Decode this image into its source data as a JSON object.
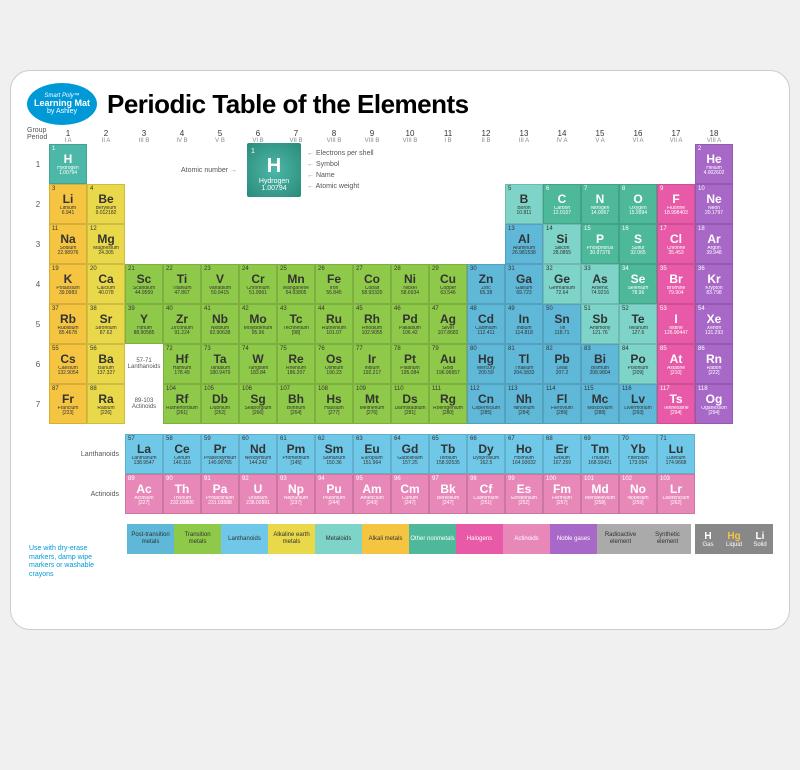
{
  "title": "Periodic Table of the Elements",
  "logo": {
    "top": "Smart Poly™",
    "mid": "Learning Mat",
    "bot": "by Ashley"
  },
  "axis": {
    "group": "Group",
    "period": "Period"
  },
  "groups": [
    {
      "n": "1",
      "s": "I A"
    },
    {
      "n": "2",
      "s": "II A"
    },
    {
      "n": "3",
      "s": "III B"
    },
    {
      "n": "4",
      "s": "IV B"
    },
    {
      "n": "5",
      "s": "V B"
    },
    {
      "n": "6",
      "s": "VI B"
    },
    {
      "n": "7",
      "s": "VII B"
    },
    {
      "n": "8",
      "s": "VIII B"
    },
    {
      "n": "9",
      "s": "VIII B"
    },
    {
      "n": "10",
      "s": "VIII B"
    },
    {
      "n": "11",
      "s": "I B"
    },
    {
      "n": "12",
      "s": "II B"
    },
    {
      "n": "13",
      "s": "III A"
    },
    {
      "n": "14",
      "s": "IV A"
    },
    {
      "n": "15",
      "s": "V A"
    },
    {
      "n": "16",
      "s": "VI A"
    },
    {
      "n": "17",
      "s": "VII A"
    },
    {
      "n": "18",
      "s": "VIII A"
    }
  ],
  "key": {
    "num": "1",
    "sym": "H",
    "name": "Hydrogen",
    "wt": "1.00794",
    "labels": {
      "an": "Atomic number",
      "eps": "Electrons per shell",
      "sym": "Symbol",
      "name": "Name",
      "aw": "Atomic weight"
    }
  },
  "colors": {
    "alkali": "#f5c542",
    "alkaline": "#e8d84a",
    "transition": "#8fc94a",
    "post": "#5fb8d8",
    "metalloid": "#7ed4c8",
    "othernon": "#4db89a",
    "halogen": "#e85aa8",
    "noble": "#a868c8",
    "lanth": "#6fc8e8",
    "actin": "#e888b8",
    "hydrogen": "#4db8a8",
    "unknown": "#aaaaaa"
  },
  "elements": [
    [
      {
        "n": 1,
        "s": "H",
        "nm": "Hydrogen",
        "w": "1.00794",
        "c": "hydrogen"
      },
      null,
      null,
      null,
      null,
      null,
      null,
      null,
      null,
      null,
      null,
      null,
      null,
      null,
      null,
      null,
      null,
      {
        "n": 2,
        "s": "He",
        "nm": "Helium",
        "w": "4.002602",
        "c": "noble"
      }
    ],
    [
      {
        "n": 3,
        "s": "Li",
        "nm": "Lithium",
        "w": "6.941",
        "c": "alkali"
      },
      {
        "n": 4,
        "s": "Be",
        "nm": "Beryllium",
        "w": "9.012182",
        "c": "alkaline"
      },
      null,
      null,
      null,
      null,
      null,
      null,
      null,
      null,
      null,
      null,
      {
        "n": 5,
        "s": "B",
        "nm": "Boron",
        "w": "10.811",
        "c": "metalloid"
      },
      {
        "n": 6,
        "s": "C",
        "nm": "Carbon",
        "w": "12.0107",
        "c": "othernon"
      },
      {
        "n": 7,
        "s": "N",
        "nm": "Nitrogen",
        "w": "14.0067",
        "c": "othernon"
      },
      {
        "n": 8,
        "s": "O",
        "nm": "Oxygen",
        "w": "15.9994",
        "c": "othernon"
      },
      {
        "n": 9,
        "s": "F",
        "nm": "Fluorine",
        "w": "18.998403",
        "c": "halogen"
      },
      {
        "n": 10,
        "s": "Ne",
        "nm": "Neon",
        "w": "20.1797",
        "c": "noble"
      }
    ],
    [
      {
        "n": 11,
        "s": "Na",
        "nm": "Sodium",
        "w": "22.98976",
        "c": "alkali"
      },
      {
        "n": 12,
        "s": "Mg",
        "nm": "Magnesium",
        "w": "24.305",
        "c": "alkaline"
      },
      null,
      null,
      null,
      null,
      null,
      null,
      null,
      null,
      null,
      null,
      {
        "n": 13,
        "s": "Al",
        "nm": "Aluminum",
        "w": "26.981538",
        "c": "post"
      },
      {
        "n": 14,
        "s": "Si",
        "nm": "Silicon",
        "w": "28.0855",
        "c": "metalloid"
      },
      {
        "n": 15,
        "s": "P",
        "nm": "Phosphorus",
        "w": "30.97376",
        "c": "othernon"
      },
      {
        "n": 16,
        "s": "S",
        "nm": "Sulfur",
        "w": "32.065",
        "c": "othernon"
      },
      {
        "n": 17,
        "s": "Cl",
        "nm": "Chlorine",
        "w": "35.453",
        "c": "halogen"
      },
      {
        "n": 18,
        "s": "Ar",
        "nm": "Argon",
        "w": "39.948",
        "c": "noble"
      }
    ],
    [
      {
        "n": 19,
        "s": "K",
        "nm": "Potassium",
        "w": "39.0983",
        "c": "alkali"
      },
      {
        "n": 20,
        "s": "Ca",
        "nm": "Calcium",
        "w": "40.078",
        "c": "alkaline"
      },
      {
        "n": 21,
        "s": "Sc",
        "nm": "Scandium",
        "w": "44.9559",
        "c": "transition"
      },
      {
        "n": 22,
        "s": "Ti",
        "nm": "Titanium",
        "w": "47.867",
        "c": "transition"
      },
      {
        "n": 23,
        "s": "V",
        "nm": "Vanadium",
        "w": "50.9415",
        "c": "transition"
      },
      {
        "n": 24,
        "s": "Cr",
        "nm": "Chromium",
        "w": "51.9961",
        "c": "transition"
      },
      {
        "n": 25,
        "s": "Mn",
        "nm": "Manganese",
        "w": "54.93805",
        "c": "transition"
      },
      {
        "n": 26,
        "s": "Fe",
        "nm": "Iron",
        "w": "55.845",
        "c": "transition"
      },
      {
        "n": 27,
        "s": "Co",
        "nm": "Cobalt",
        "w": "58.93320",
        "c": "transition"
      },
      {
        "n": 28,
        "s": "Ni",
        "nm": "Nickel",
        "w": "58.6934",
        "c": "transition"
      },
      {
        "n": 29,
        "s": "Cu",
        "nm": "Copper",
        "w": "63.546",
        "c": "transition"
      },
      {
        "n": 30,
        "s": "Zn",
        "nm": "Zinc",
        "w": "65.38",
        "c": "post"
      },
      {
        "n": 31,
        "s": "Ga",
        "nm": "Gallium",
        "w": "69.723",
        "c": "post"
      },
      {
        "n": 32,
        "s": "Ge",
        "nm": "Germanium",
        "w": "72.64",
        "c": "metalloid"
      },
      {
        "n": 33,
        "s": "As",
        "nm": "Arsenic",
        "w": "74.9216",
        "c": "metalloid"
      },
      {
        "n": 34,
        "s": "Se",
        "nm": "Selenium",
        "w": "78.96",
        "c": "othernon"
      },
      {
        "n": 35,
        "s": "Br",
        "nm": "Bromine",
        "w": "79.904",
        "c": "halogen"
      },
      {
        "n": 36,
        "s": "Kr",
        "nm": "Krypton",
        "w": "83.798",
        "c": "noble"
      }
    ],
    [
      {
        "n": 37,
        "s": "Rb",
        "nm": "Rubidium",
        "w": "85.4678",
        "c": "alkali"
      },
      {
        "n": 38,
        "s": "Sr",
        "nm": "Strontium",
        "w": "87.62",
        "c": "alkaline"
      },
      {
        "n": 39,
        "s": "Y",
        "nm": "Yttrium",
        "w": "88.90585",
        "c": "transition"
      },
      {
        "n": 40,
        "s": "Zr",
        "nm": "Zirconium",
        "w": "91.224",
        "c": "transition"
      },
      {
        "n": 41,
        "s": "Nb",
        "nm": "Niobium",
        "w": "92.90638",
        "c": "transition"
      },
      {
        "n": 42,
        "s": "Mo",
        "nm": "Molybdenum",
        "w": "95.96",
        "c": "transition"
      },
      {
        "n": 43,
        "s": "Tc",
        "nm": "Technetium",
        "w": "[98]",
        "c": "transition"
      },
      {
        "n": 44,
        "s": "Ru",
        "nm": "Ruthenium",
        "w": "101.07",
        "c": "transition"
      },
      {
        "n": 45,
        "s": "Rh",
        "nm": "Rhodium",
        "w": "102.9055",
        "c": "transition"
      },
      {
        "n": 46,
        "s": "Pd",
        "nm": "Palladium",
        "w": "106.42",
        "c": "transition"
      },
      {
        "n": 47,
        "s": "Ag",
        "nm": "Silver",
        "w": "107.8682",
        "c": "transition"
      },
      {
        "n": 48,
        "s": "Cd",
        "nm": "Cadmium",
        "w": "112.411",
        "c": "post"
      },
      {
        "n": 49,
        "s": "In",
        "nm": "Indium",
        "w": "114.818",
        "c": "post"
      },
      {
        "n": 50,
        "s": "Sn",
        "nm": "Tin",
        "w": "118.71",
        "c": "post"
      },
      {
        "n": 51,
        "s": "Sb",
        "nm": "Antimony",
        "w": "121.76",
        "c": "metalloid"
      },
      {
        "n": 52,
        "s": "Te",
        "nm": "Tellurium",
        "w": "127.6",
        "c": "metalloid"
      },
      {
        "n": 53,
        "s": "I",
        "nm": "Iodine",
        "w": "126.90447",
        "c": "halogen"
      },
      {
        "n": 54,
        "s": "Xe",
        "nm": "Xenon",
        "w": "131.293",
        "c": "noble"
      }
    ],
    [
      {
        "n": 55,
        "s": "Cs",
        "nm": "Caesium",
        "w": "132.9054",
        "c": "alkali"
      },
      {
        "n": 56,
        "s": "Ba",
        "nm": "Barium",
        "w": "137.327",
        "c": "alkaline"
      },
      {
        "lbl": "57-71",
        "sub": "Lanthanoids"
      },
      {
        "n": 72,
        "s": "Hf",
        "nm": "Hafnium",
        "w": "178.49",
        "c": "transition"
      },
      {
        "n": 73,
        "s": "Ta",
        "nm": "Tantalum",
        "w": "180.9479",
        "c": "transition"
      },
      {
        "n": 74,
        "s": "W",
        "nm": "Tungsten",
        "w": "183.84",
        "c": "transition"
      },
      {
        "n": 75,
        "s": "Re",
        "nm": "Rhenium",
        "w": "186.207",
        "c": "transition"
      },
      {
        "n": 76,
        "s": "Os",
        "nm": "Osmium",
        "w": "190.23",
        "c": "transition"
      },
      {
        "n": 77,
        "s": "Ir",
        "nm": "Iridium",
        "w": "192.217",
        "c": "transition"
      },
      {
        "n": 78,
        "s": "Pt",
        "nm": "Platinum",
        "w": "195.084",
        "c": "transition"
      },
      {
        "n": 79,
        "s": "Au",
        "nm": "Gold",
        "w": "196.96657",
        "c": "transition"
      },
      {
        "n": 80,
        "s": "Hg",
        "nm": "Mercury",
        "w": "200.59",
        "c": "post"
      },
      {
        "n": 81,
        "s": "Tl",
        "nm": "Thallium",
        "w": "204.3833",
        "c": "post"
      },
      {
        "n": 82,
        "s": "Pb",
        "nm": "Lead",
        "w": "207.2",
        "c": "post"
      },
      {
        "n": 83,
        "s": "Bi",
        "nm": "Bismuth",
        "w": "208.9804",
        "c": "post"
      },
      {
        "n": 84,
        "s": "Po",
        "nm": "Polonium",
        "w": "[209]",
        "c": "metalloid"
      },
      {
        "n": 85,
        "s": "At",
        "nm": "Astatine",
        "w": "[210]",
        "c": "halogen"
      },
      {
        "n": 86,
        "s": "Rn",
        "nm": "Radon",
        "w": "[222]",
        "c": "noble"
      }
    ],
    [
      {
        "n": 87,
        "s": "Fr",
        "nm": "Francium",
        "w": "[223]",
        "c": "alkali"
      },
      {
        "n": 88,
        "s": "Ra",
        "nm": "Radium",
        "w": "[226]",
        "c": "alkaline"
      },
      {
        "lbl": "89-103",
        "sub": "Actinoids"
      },
      {
        "n": 104,
        "s": "Rf",
        "nm": "Rutherfordium",
        "w": "[261]",
        "c": "transition"
      },
      {
        "n": 105,
        "s": "Db",
        "nm": "Dubnium",
        "w": "[262]",
        "c": "transition"
      },
      {
        "n": 106,
        "s": "Sg",
        "nm": "Seaborgium",
        "w": "[266]",
        "c": "transition"
      },
      {
        "n": 107,
        "s": "Bh",
        "nm": "Bohrium",
        "w": "[264]",
        "c": "transition"
      },
      {
        "n": 108,
        "s": "Hs",
        "nm": "Hassium",
        "w": "[277]",
        "c": "transition"
      },
      {
        "n": 109,
        "s": "Mt",
        "nm": "Meitnerium",
        "w": "[276]",
        "c": "transition"
      },
      {
        "n": 110,
        "s": "Ds",
        "nm": "Darmstadtium",
        "w": "[281]",
        "c": "transition"
      },
      {
        "n": 111,
        "s": "Rg",
        "nm": "Roentgenium",
        "w": "[280]",
        "c": "transition"
      },
      {
        "n": 112,
        "s": "Cn",
        "nm": "Copernicium",
        "w": "[285]",
        "c": "post"
      },
      {
        "n": 113,
        "s": "Nh",
        "nm": "Nihonium",
        "w": "[284]",
        "c": "post"
      },
      {
        "n": 114,
        "s": "Fl",
        "nm": "Flerovium",
        "w": "[289]",
        "c": "post"
      },
      {
        "n": 115,
        "s": "Mc",
        "nm": "Moscovium",
        "w": "[288]",
        "c": "post"
      },
      {
        "n": 116,
        "s": "Lv",
        "nm": "Livermorium",
        "w": "[293]",
        "c": "post"
      },
      {
        "n": 117,
        "s": "Ts",
        "nm": "Tennessine",
        "w": "[294]",
        "c": "halogen"
      },
      {
        "n": 118,
        "s": "Og",
        "nm": "Oganesson",
        "w": "[294]",
        "c": "noble"
      }
    ]
  ],
  "lanthanoids_label": "Lanthanoids",
  "actinoids_label": "Actinoids",
  "lanthanoids": [
    {
      "n": 57,
      "s": "La",
      "nm": "Lanthanum",
      "w": "138.9547",
      "c": "lanth"
    },
    {
      "n": 58,
      "s": "Ce",
      "nm": "Cerium",
      "w": "140.116",
      "c": "lanth"
    },
    {
      "n": 59,
      "s": "Pr",
      "nm": "Praseodymium",
      "w": "140.90765",
      "c": "lanth"
    },
    {
      "n": 60,
      "s": "Nd",
      "nm": "Neodymium",
      "w": "144.242",
      "c": "lanth"
    },
    {
      "n": 61,
      "s": "Pm",
      "nm": "Promethium",
      "w": "[145]",
      "c": "lanth"
    },
    {
      "n": 62,
      "s": "Sm",
      "nm": "Samarium",
      "w": "150.36",
      "c": "lanth"
    },
    {
      "n": 63,
      "s": "Eu",
      "nm": "Europium",
      "w": "151.964",
      "c": "lanth"
    },
    {
      "n": 64,
      "s": "Gd",
      "nm": "Gadolinium",
      "w": "157.25",
      "c": "lanth"
    },
    {
      "n": 65,
      "s": "Tb",
      "nm": "Terbium",
      "w": "158.92535",
      "c": "lanth"
    },
    {
      "n": 66,
      "s": "Dy",
      "nm": "Dysprosium",
      "w": "162.5",
      "c": "lanth"
    },
    {
      "n": 67,
      "s": "Ho",
      "nm": "Holmium",
      "w": "164.93032",
      "c": "lanth"
    },
    {
      "n": 68,
      "s": "Er",
      "nm": "Erbium",
      "w": "167.259",
      "c": "lanth"
    },
    {
      "n": 69,
      "s": "Tm",
      "nm": "Thulium",
      "w": "168.93421",
      "c": "lanth"
    },
    {
      "n": 70,
      "s": "Yb",
      "nm": "Ytterbium",
      "w": "173.054",
      "c": "lanth"
    },
    {
      "n": 71,
      "s": "Lu",
      "nm": "Lutetium",
      "w": "174.9668",
      "c": "lanth"
    }
  ],
  "actinoids": [
    {
      "n": 89,
      "s": "Ac",
      "nm": "Actinium",
      "w": "[227]",
      "c": "actin"
    },
    {
      "n": 90,
      "s": "Th",
      "nm": "Thorium",
      "w": "232.03806",
      "c": "actin"
    },
    {
      "n": 91,
      "s": "Pa",
      "nm": "Protactinium",
      "w": "231.03588",
      "c": "actin"
    },
    {
      "n": 92,
      "s": "U",
      "nm": "Uranium",
      "w": "238.02891",
      "c": "actin"
    },
    {
      "n": 93,
      "s": "Np",
      "nm": "Neptunium",
      "w": "[237]",
      "c": "actin"
    },
    {
      "n": 94,
      "s": "Pu",
      "nm": "Plutonium",
      "w": "[244]",
      "c": "actin"
    },
    {
      "n": 95,
      "s": "Am",
      "nm": "Americium",
      "w": "[243]",
      "c": "actin"
    },
    {
      "n": 96,
      "s": "Cm",
      "nm": "Curium",
      "w": "[247]",
      "c": "actin"
    },
    {
      "n": 97,
      "s": "Bk",
      "nm": "Berkelium",
      "w": "[247]",
      "c": "actin"
    },
    {
      "n": 98,
      "s": "Cf",
      "nm": "Californium",
      "w": "[251]",
      "c": "actin"
    },
    {
      "n": 99,
      "s": "Es",
      "nm": "Einsteinium",
      "w": "[252]",
      "c": "actin"
    },
    {
      "n": 100,
      "s": "Fm",
      "nm": "Fermium",
      "w": "[257]",
      "c": "actin"
    },
    {
      "n": 101,
      "s": "Md",
      "nm": "Mendelevium",
      "w": "[258]",
      "c": "actin"
    },
    {
      "n": 102,
      "s": "No",
      "nm": "Nobelium",
      "w": "[259]",
      "c": "actin"
    },
    {
      "n": 103,
      "s": "Lr",
      "nm": "Lawrencium",
      "w": "[262]",
      "c": "actin"
    }
  ],
  "legend": [
    {
      "t": "Post-transition metals",
      "c": "post"
    },
    {
      "t": "Transition metals",
      "c": "transition"
    },
    {
      "t": "Lanthanoids",
      "c": "lanth"
    },
    {
      "t": "Alkaline earth metals",
      "c": "alkaline"
    },
    {
      "t": "Metaloids",
      "c": "metalloid"
    },
    {
      "t": "Alkali metals",
      "c": "alkali"
    },
    {
      "t": "Other nonmetals",
      "c": "othernon"
    },
    {
      "t": "Halogens",
      "c": "halogen"
    },
    {
      "t": "Actinoids",
      "c": "actin"
    },
    {
      "t": "Noble gases",
      "c": "noble"
    },
    {
      "t": "Radioactive element",
      "c": "unknown"
    },
    {
      "t": "Synthetic element",
      "c": "unknown"
    }
  ],
  "states": [
    {
      "s": "H",
      "t": "Gas"
    },
    {
      "s": "Hg",
      "t": "Liquid",
      "col": "#f5c542"
    },
    {
      "s": "Li",
      "t": "Solid"
    }
  ],
  "footer": "Use with dry-erase markers, damp wipe markers or washable crayons"
}
